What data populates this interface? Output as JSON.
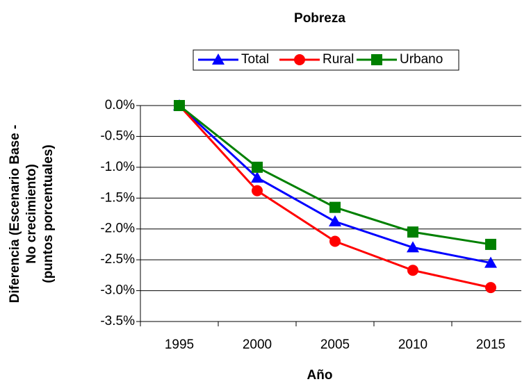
{
  "chart_data": {
    "type": "line",
    "title": "Pobreza",
    "x_label": "Año",
    "y_label": [
      "Diferencia (Escenario Base -",
      "No crecimiento)",
      "(puntos porcentuales)"
    ],
    "categories": [
      "1995",
      "2000",
      "2005",
      "2010",
      "2015"
    ],
    "series": [
      {
        "name": "Total",
        "color": "#0000ff",
        "marker": "triangle",
        "values": [
          0,
          -1.17,
          -1.88,
          -2.3,
          -2.55
        ]
      },
      {
        "name": "Rural",
        "color": "#ff0000",
        "marker": "circle",
        "values": [
          0,
          -1.38,
          -2.2,
          -2.67,
          -2.95
        ]
      },
      {
        "name": "Urbano",
        "color": "#008000",
        "marker": "square",
        "values": [
          0,
          -1.0,
          -1.65,
          -2.05,
          -2.25
        ]
      }
    ],
    "ylim": [
      -3.5,
      0
    ],
    "yticks": [
      {
        "value": 0,
        "label": "0.0%"
      },
      {
        "value": -0.5,
        "label": "-0.5%"
      },
      {
        "value": -1,
        "label": "-1.0%"
      },
      {
        "value": -1.5,
        "label": "-1.5%"
      },
      {
        "value": -2,
        "label": "-2.0%"
      },
      {
        "value": -2.5,
        "label": "-2.5%"
      },
      {
        "value": -3,
        "label": "-3.0%"
      },
      {
        "value": -3.5,
        "label": "-3.5%"
      }
    ],
    "grid": true,
    "legend": "top"
  }
}
